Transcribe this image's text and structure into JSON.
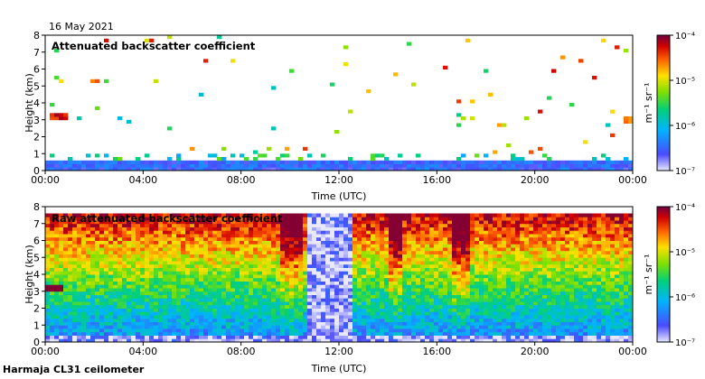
{
  "header": {
    "date": "16 May 2021"
  },
  "footer": {
    "station": "Harmaja CL31 ceilometer"
  },
  "chart_data": [
    {
      "type": "heatmap",
      "title": "Attenuated backscatter coefficient",
      "xlabel": "Time (UTC)",
      "ylabel": "Height (km)",
      "xlim": [
        0,
        24
      ],
      "ylim": [
        0,
        8
      ],
      "x_ticks": [
        "00:00",
        "04:00",
        "08:00",
        "12:00",
        "16:00",
        "20:00",
        "00:00"
      ],
      "y_ticks": [
        "0",
        "1",
        "2",
        "3",
        "4",
        "5",
        "6",
        "7",
        "8"
      ],
      "colorbar": {
        "label": "m⁻¹ sr⁻¹",
        "ticks": [
          "10⁻⁷",
          "10⁻⁶",
          "10⁻⁵",
          "10⁻⁴"
        ],
        "range_log10": [
          -7,
          -4
        ]
      },
      "features": [
        {
          "name": "cloud layer",
          "t_start": 0.2,
          "t_end": 1.0,
          "height": 3.2,
          "log10_value": -4.3
        },
        {
          "name": "cloud layer",
          "t_start": 23.0,
          "t_end": 23.3,
          "height": 2.1,
          "log10_value": -4.5
        },
        {
          "name": "cloud layer",
          "t_start": 23.7,
          "t_end": 24.0,
          "height": 3.0,
          "log10_value": -4.6
        },
        {
          "name": "boundary layer",
          "t_start": 0,
          "t_end": 24,
          "height": 0.4,
          "log10_value": -6.5
        }
      ]
    },
    {
      "type": "heatmap",
      "title": "Raw attenuated backscatter coefficient",
      "xlabel": "Time (UTC)",
      "ylabel": "Height (km)",
      "xlim": [
        0,
        24
      ],
      "ylim": [
        0,
        8
      ],
      "x_ticks": [
        "00:00",
        "04:00",
        "08:00",
        "12:00",
        "16:00",
        "20:00",
        "00:00"
      ],
      "y_ticks": [
        "0",
        "1",
        "2",
        "3",
        "4",
        "5",
        "6",
        "7",
        "8"
      ],
      "colorbar": {
        "label": "m⁻¹ sr⁻¹",
        "ticks": [
          "10⁻⁷",
          "10⁻⁶",
          "10⁻⁵",
          "10⁻⁴"
        ],
        "range_log10": [
          -7,
          -4
        ]
      },
      "features": [
        {
          "name": "low-signal gap",
          "t_start": 10.8,
          "t_end": 12.6,
          "log10_value": -6.9
        },
        {
          "name": "high noise band",
          "t_start": 14.0,
          "t_end": 14.6,
          "log10_value": -4.4
        },
        {
          "name": "high noise band",
          "t_start": 16.6,
          "t_end": 17.4,
          "log10_value": -4.5
        },
        {
          "name": "high noise band",
          "t_start": 9.6,
          "t_end": 10.6,
          "log10_value": -4.8
        },
        {
          "name": "cloud layer",
          "t_start": 0.0,
          "t_end": 0.8,
          "height": 3.2,
          "log10_value": -4.3
        }
      ]
    }
  ]
}
